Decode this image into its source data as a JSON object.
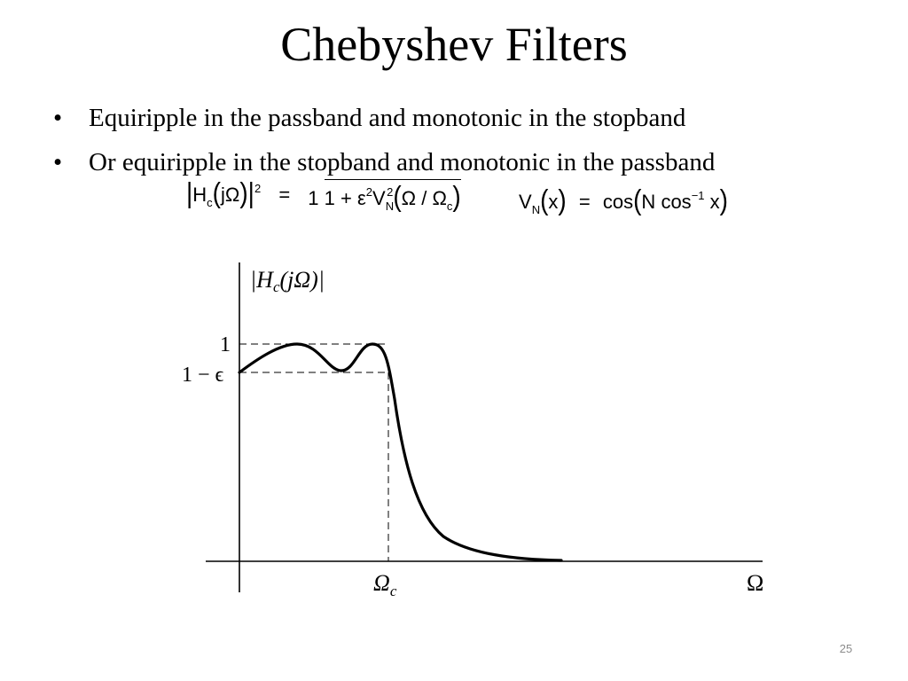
{
  "slide": {
    "title": "Chebyshev Filters",
    "bullet_marker": "•",
    "bullets": [
      "Equiripple in the passband and monotonic in the stopband",
      "Or equiripple in the stopband and monotonic in the passband"
    ],
    "page_number": "25"
  },
  "equations": {
    "magnitude": {
      "H": "H",
      "c": "c",
      "arg": "jΩ",
      "power": "2",
      "equals": "=",
      "numerator": "1",
      "denominator_prefix": "1 + ε",
      "eps_power": "2",
      "V": "V",
      "N": "N",
      "V_power": "2",
      "omega_ratio": "Ω / Ω",
      "omega_sub": "c"
    },
    "chebyshev_poly": {
      "V": "V",
      "N": "N",
      "x": "x",
      "equals": "=",
      "cos": "cos",
      "N_coef": "N",
      "cos_inv": "cos",
      "inv_power": "−1",
      "arg": "x"
    }
  },
  "plot": {
    "y_axis_label": "|H",
    "y_axis_label_sub": "c",
    "y_axis_label_arg": "(jΩ)|",
    "y_tick_one": "1",
    "y_tick_one_minus_eps": "1 − ϵ",
    "x_tick_cutoff": "Ω",
    "x_tick_cutoff_sub": "c",
    "x_axis_label": "Ω",
    "passband_max": 1,
    "passband_min_ratio": "1 − ϵ",
    "curve_color": "#000000"
  }
}
